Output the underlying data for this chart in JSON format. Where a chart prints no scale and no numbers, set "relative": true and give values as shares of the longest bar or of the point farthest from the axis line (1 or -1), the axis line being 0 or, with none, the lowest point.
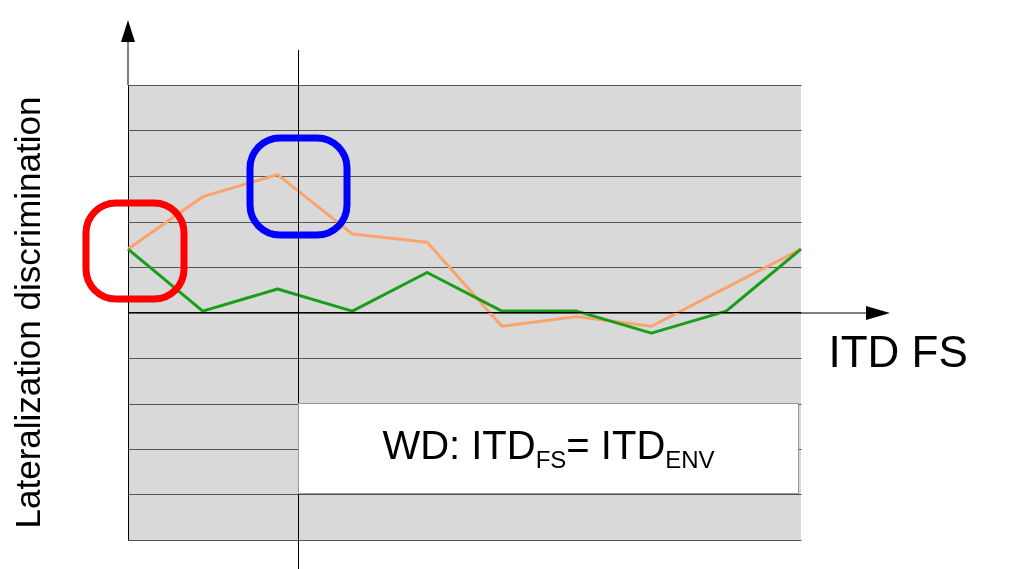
{
  "chart_data": {
    "type": "line",
    "relative": true,
    "xlabel": "ITD FS",
    "ylabel": "Lateralization discrimination",
    "grid": "y",
    "categories": [
      null,
      null,
      null,
      null,
      null,
      null,
      null,
      null,
      null,
      null
    ],
    "series": [
      {
        "color": "#f9a46c",
        "values": [
          0.46,
          0.84,
          1,
          0.57,
          0.51,
          -0.1,
          -0.03,
          -0.1,
          0.18,
          0.46
        ]
      },
      {
        "color": "#1a9e1a",
        "values": [
          0.46,
          0.01,
          0.17,
          0.01,
          0.29,
          0.01,
          0.01,
          -0.15,
          0.01,
          0.46
        ]
      }
    ],
    "annotations": [
      "WD: ITD$_{FS}$= ITD$_{ENV}$"
    ]
  }
}
